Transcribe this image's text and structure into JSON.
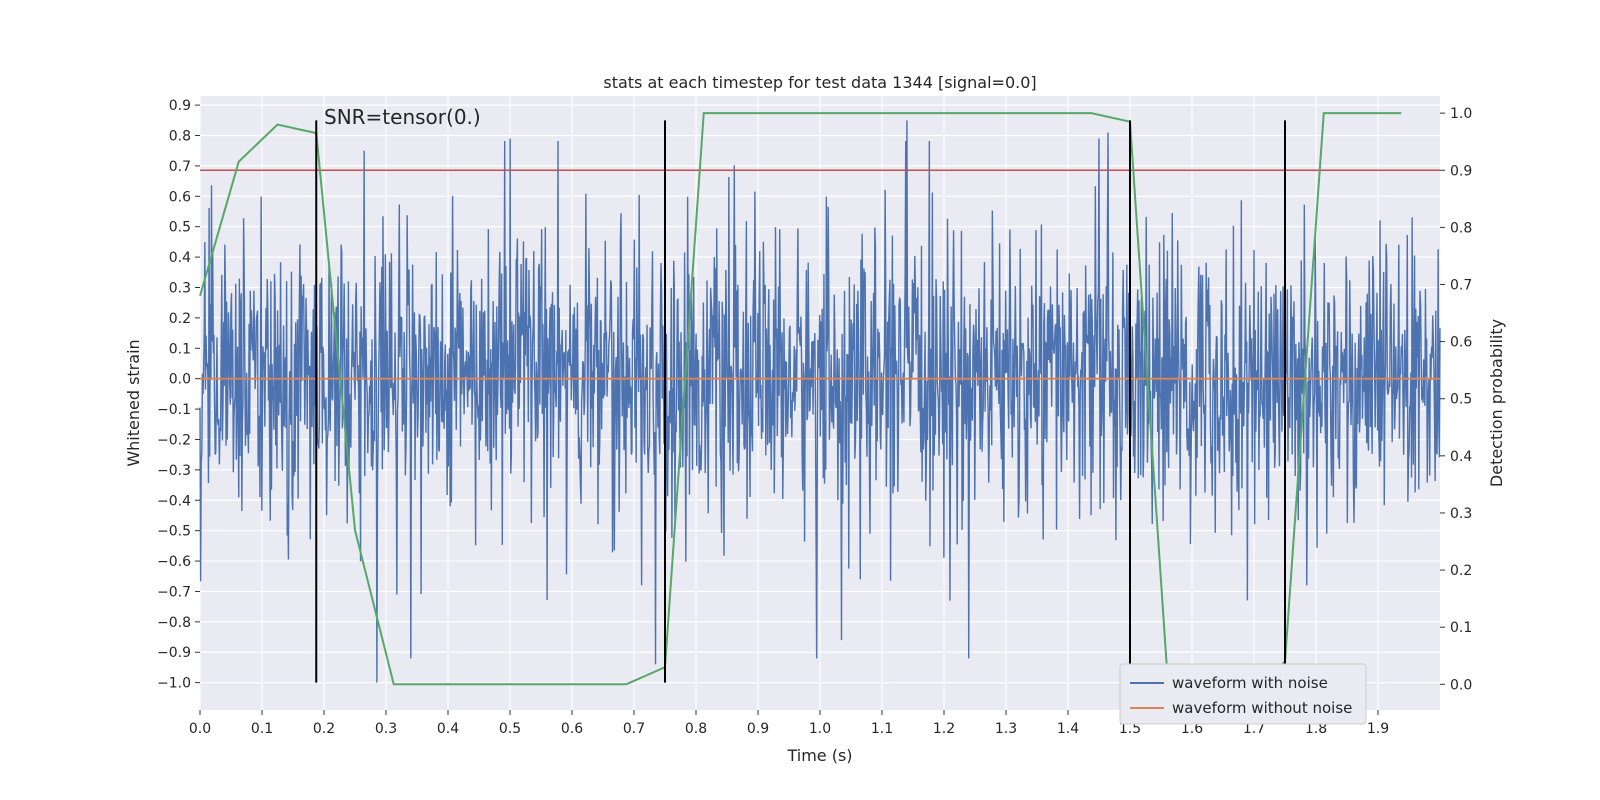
{
  "chart_data": {
    "type": "line",
    "title": "stats at each timestep for test data 1344 [signal=0.0]",
    "xlabel": "Time (s)",
    "ylabel_left": "Whitened strain",
    "ylabel_right": "Detection probability",
    "annotation": "SNR=tensor(0.)",
    "xlim": [
      0.0,
      2.0
    ],
    "ylim_left": [
      -1.09,
      0.93
    ],
    "ylim_right": [
      -0.045,
      1.03
    ],
    "x_ticks": [
      0.0,
      0.1,
      0.2,
      0.3,
      0.4,
      0.5,
      0.6,
      0.7,
      0.8,
      0.9,
      1.0,
      1.1,
      1.2,
      1.3,
      1.4,
      1.5,
      1.6,
      1.7,
      1.8,
      1.9
    ],
    "x_tick_labels": [
      "0.0",
      "0.1",
      "0.2",
      "0.3",
      "0.4",
      "0.5",
      "0.6",
      "0.7",
      "0.8",
      "0.9",
      "1.0",
      "1.1",
      "1.2",
      "1.3",
      "1.4",
      "1.5",
      "1.6",
      "1.7",
      "1.8",
      "1.9"
    ],
    "y_left_ticks": [
      0.9,
      0.8,
      0.7,
      0.6,
      0.5,
      0.4,
      0.3,
      0.2,
      0.1,
      0.0,
      -0.1,
      -0.2,
      -0.3,
      -0.4,
      -0.5,
      -0.6,
      -0.7,
      -0.8,
      -0.9,
      -1.0
    ],
    "y_left_tick_labels": [
      "0.9",
      "0.8",
      "0.7",
      "0.6",
      "0.5",
      "0.4",
      "0.3",
      "0.2",
      "0.1",
      "0.0",
      "−0.1",
      "−0.2",
      "−0.3",
      "−0.4",
      "−0.5",
      "−0.6",
      "−0.7",
      "−0.8",
      "−0.9",
      "−1.0"
    ],
    "y_right_ticks": [
      1.0,
      0.9,
      0.8,
      0.7,
      0.6,
      0.5,
      0.4,
      0.3,
      0.2,
      0.1,
      0.0
    ],
    "y_right_tick_labels": [
      "1.0",
      "0.9",
      "0.8",
      "0.7",
      "0.6",
      "0.5",
      "0.4",
      "0.3",
      "0.2",
      "0.1",
      "0.0"
    ],
    "grid": true,
    "legend_position": "bottom-right",
    "series": [
      {
        "name": "waveform with noise",
        "axis": "left",
        "color": "#4c72b0",
        "kind": "noise",
        "x_range": [
          0.0,
          2.0
        ],
        "samples": 2048,
        "approx_std": 0.22,
        "approx_max": 0.85,
        "approx_min": -1.0,
        "notable_peaks": [
          {
            "x": 0.285,
            "y": -1.0
          },
          {
            "x": 0.5,
            "y": 0.79
          },
          {
            "x": 0.735,
            "y": -0.94
          },
          {
            "x": 1.14,
            "y": 0.85
          },
          {
            "x": 1.45,
            "y": 0.79
          },
          {
            "x": 1.465,
            "y": 0.81
          },
          {
            "x": 1.035,
            "y": -0.86
          },
          {
            "x": 1.21,
            "y": -0.73
          },
          {
            "x": 1.785,
            "y": -0.68
          },
          {
            "x": 0.265,
            "y": 0.75
          }
        ]
      },
      {
        "name": "waveform without noise",
        "axis": "left",
        "color": "#dd8452",
        "x": [
          0.0,
          2.0
        ],
        "y": [
          0.0,
          0.0
        ]
      },
      {
        "name": "",
        "axis": "right",
        "color": "#55a868",
        "x": [
          0.0,
          0.0625,
          0.125,
          0.1875,
          0.25,
          0.3125,
          0.375,
          0.4375,
          0.5,
          0.5625,
          0.625,
          0.6875,
          0.75,
          0.8125,
          0.875,
          0.9375,
          1.0,
          1.0625,
          1.125,
          1.1875,
          1.25,
          1.3125,
          1.375,
          1.4375,
          1.5,
          1.5625,
          1.625,
          1.6875,
          1.75,
          1.8125,
          1.875,
          1.9375
        ],
        "y": [
          0.68,
          0.915,
          0.98,
          0.965,
          0.27,
          0.0,
          0.0,
          0.0,
          0.0,
          0.0,
          0.0,
          0.0,
          0.03,
          1.0,
          1.0,
          1.0,
          1.0,
          1.0,
          1.0,
          1.0,
          1.0,
          1.0,
          1.0,
          1.0,
          0.985,
          -0.02,
          -0.05,
          -0.03,
          0.04,
          1.0,
          1.0,
          1.0
        ]
      }
    ],
    "threshold_line": {
      "axis": "right",
      "y": 0.9,
      "color": "#c44e52"
    },
    "vertical_markers": {
      "x": [
        0.1875,
        0.75,
        1.5,
        1.75
      ],
      "y_range": [
        -1.0,
        0.85
      ],
      "color": "#000000"
    }
  }
}
